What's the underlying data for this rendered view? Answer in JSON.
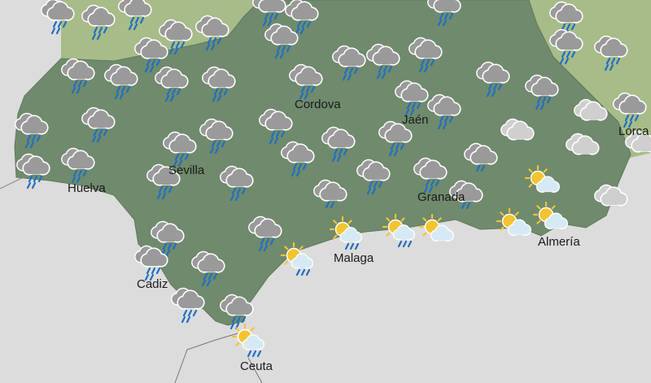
{
  "colors": {
    "sea": "#dcdcdc",
    "region": "#6f8a6c",
    "neighbour": "#a7bc88",
    "cloud": "#9a9a9a",
    "light_cloud": "#cfcfcf",
    "rain": "#1f6fc4",
    "sun": "#f4c430"
  },
  "cities": [
    {
      "name": "Cordova"
    },
    {
      "name": "Jaén"
    },
    {
      "name": "Sevilla"
    },
    {
      "name": "Huelva"
    },
    {
      "name": "Granada"
    },
    {
      "name": "Malaga"
    },
    {
      "name": "Almería"
    },
    {
      "name": "Cadiz"
    },
    {
      "name": "Ceuta"
    },
    {
      "name": "Lorca"
    }
  ],
  "weather_icons": [
    "rain",
    "rain",
    "rain",
    "rain",
    "rain",
    "rain",
    "rain",
    "rain",
    "rain",
    "rain",
    "rain",
    "rain",
    "rain",
    "rain",
    "rain",
    "rain",
    "rain",
    "rain",
    "rain",
    "rain",
    "rain",
    "rain",
    "rain",
    "rain",
    "rain",
    "rain",
    "rain",
    "rain",
    "rain",
    "rain",
    "rain",
    "rain",
    "rain",
    "rain",
    "rain",
    "light-rain",
    "light-rain",
    "light-rain",
    "rain",
    "rain",
    "rain",
    "rain",
    "rain",
    "rain",
    "rain",
    "rain",
    "rain",
    "rain",
    "rain",
    "cloudy",
    "cloudy",
    "cloudy",
    "cloudy",
    "cloudy",
    "sun-cloud-rain",
    "sun-cloud-rain",
    "sun-cloud-rain",
    "sun-cloud-rain",
    "sun-cloud",
    "sun-cloud",
    "sun-cloud",
    "sun-cloud"
  ]
}
